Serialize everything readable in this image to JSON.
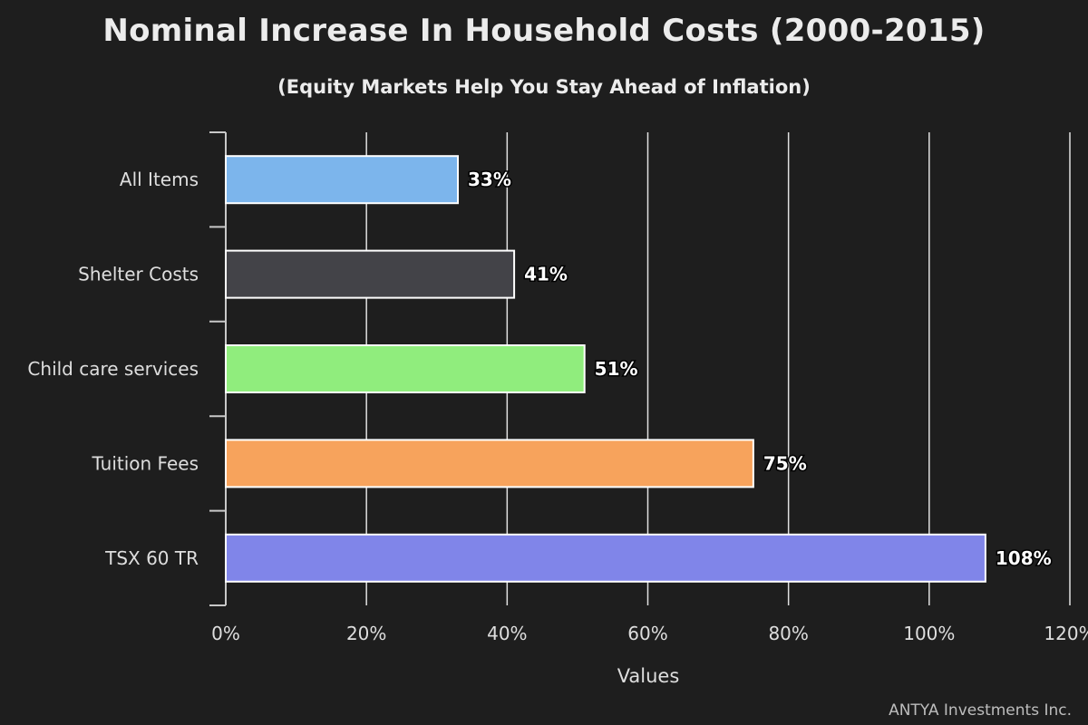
{
  "chart": {
    "title": "Nominal Increase In Household Costs (2000-2015)",
    "subtitle": "(Equity Markets Help You Stay Ahead of Inflation)",
    "credits": "ANTYA Investments Inc."
  },
  "chart_data": {
    "type": "bar",
    "orientation": "horizontal",
    "title": "Nominal Increase In Household Costs (2000-2015)",
    "subtitle": "(Equity Markets Help You Stay Ahead of Inflation)",
    "xlabel": "Values",
    "ylabel": "",
    "categories": [
      "All Items",
      "Shelter Costs",
      "Child care services",
      "Tuition Fees",
      "TSX 60 TR"
    ],
    "values": [
      33,
      41,
      51,
      75,
      108
    ],
    "data_labels": [
      "33%",
      "41%",
      "51%",
      "75%",
      "108%"
    ],
    "colors": [
      "#7cb5ec",
      "#434348",
      "#90ed7d",
      "#f7a35c",
      "#8085e9"
    ],
    "xlim": [
      0,
      120
    ],
    "ticks": [
      0,
      20,
      40,
      60,
      80,
      100,
      120
    ],
    "tick_labels": [
      "0%",
      "20%",
      "40%",
      "60%",
      "80%",
      "100%",
      "120%"
    ],
    "grid": true,
    "legend": false,
    "background": "#1e1e1e",
    "gridline_color": "#e0e0e0",
    "bar_border_color": "#ffffff"
  }
}
